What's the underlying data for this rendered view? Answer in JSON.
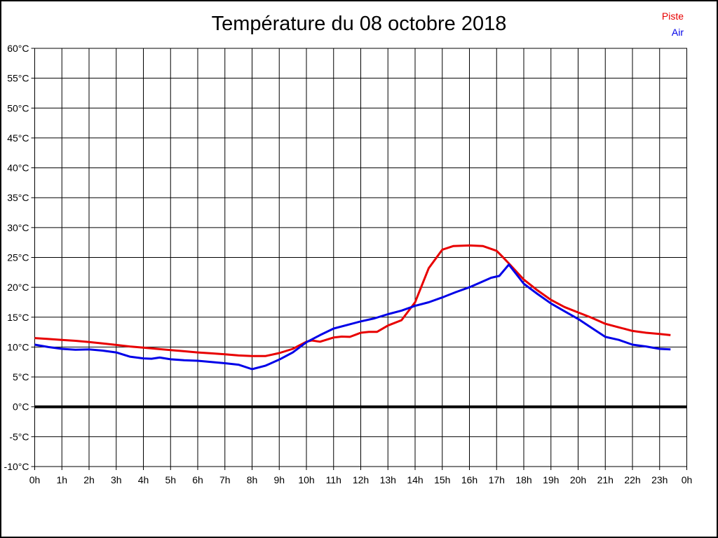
{
  "chart_data": {
    "type": "line",
    "title": "Température du 08 octobre 2018",
    "xlabel": "",
    "ylabel": "",
    "grid": true,
    "legend_position": "top-right",
    "x_axis": {
      "min": 0,
      "max": 24,
      "tick_step_hours": 1,
      "tick_labels": [
        "0h",
        "1h",
        "2h",
        "3h",
        "4h",
        "5h",
        "6h",
        "7h",
        "8h",
        "9h",
        "10h",
        "11h",
        "12h",
        "13h",
        "14h",
        "15h",
        "16h",
        "17h",
        "18h",
        "19h",
        "20h",
        "21h",
        "22h",
        "23h",
        "0h"
      ]
    },
    "y_axis": {
      "min": -10,
      "max": 60,
      "tick_step_degrees": 5,
      "tick_labels": [
        "60°C",
        "55°C",
        "50°C",
        "45°C",
        "40°C",
        "35°C",
        "30°C",
        "25°C",
        "20°C",
        "15°C",
        "10°C",
        "5°C",
        "0°C",
        "-5°C",
        "-10°C"
      ],
      "zero_line_bold": true
    },
    "series": [
      {
        "name": "Piste",
        "color": "#e80000",
        "points": [
          [
            0,
            11.5
          ],
          [
            0.5,
            11.35
          ],
          [
            1,
            11.2
          ],
          [
            1.5,
            11.05
          ],
          [
            2,
            10.85
          ],
          [
            2.5,
            10.6
          ],
          [
            3,
            10.35
          ],
          [
            3.5,
            10.1
          ],
          [
            4,
            9.9
          ],
          [
            4.5,
            9.7
          ],
          [
            5,
            9.5
          ],
          [
            5.5,
            9.3
          ],
          [
            6,
            9.1
          ],
          [
            6.5,
            8.95
          ],
          [
            7,
            8.8
          ],
          [
            7.5,
            8.6
          ],
          [
            8,
            8.5
          ],
          [
            8.5,
            8.5
          ],
          [
            9,
            9.0
          ],
          [
            9.5,
            9.7
          ],
          [
            10,
            10.9
          ],
          [
            10.2,
            11.1
          ],
          [
            10.5,
            10.9
          ],
          [
            11,
            11.6
          ],
          [
            11.3,
            11.75
          ],
          [
            11.6,
            11.7
          ],
          [
            12,
            12.4
          ],
          [
            12.3,
            12.55
          ],
          [
            12.6,
            12.55
          ],
          [
            13,
            13.6
          ],
          [
            13.5,
            14.5
          ],
          [
            14,
            17.5
          ],
          [
            14.5,
            23.2
          ],
          [
            15,
            26.3
          ],
          [
            15.4,
            26.9
          ],
          [
            16,
            27.0
          ],
          [
            16.5,
            26.9
          ],
          [
            17,
            26.1
          ],
          [
            17.2,
            25.2
          ],
          [
            17.45,
            24.0
          ],
          [
            18,
            21.3
          ],
          [
            18.5,
            19.5
          ],
          [
            19,
            17.9
          ],
          [
            19.5,
            16.7
          ],
          [
            20,
            15.8
          ],
          [
            20.5,
            14.9
          ],
          [
            21,
            13.9
          ],
          [
            21.5,
            13.3
          ],
          [
            22,
            12.7
          ],
          [
            22.5,
            12.4
          ],
          [
            23,
            12.2
          ],
          [
            23.4,
            12.0
          ]
        ]
      },
      {
        "name": "Air",
        "color": "#0000e8",
        "points": [
          [
            0,
            10.4
          ],
          [
            0.5,
            10.0
          ],
          [
            1,
            9.7
          ],
          [
            1.5,
            9.55
          ],
          [
            2,
            9.6
          ],
          [
            2.5,
            9.4
          ],
          [
            3,
            9.1
          ],
          [
            3.5,
            8.4
          ],
          [
            4,
            8.1
          ],
          [
            4.3,
            8.05
          ],
          [
            4.6,
            8.25
          ],
          [
            5,
            7.95
          ],
          [
            5.5,
            7.8
          ],
          [
            6,
            7.7
          ],
          [
            6.5,
            7.5
          ],
          [
            7,
            7.3
          ],
          [
            7.5,
            7.05
          ],
          [
            8,
            6.3
          ],
          [
            8.5,
            6.9
          ],
          [
            9,
            7.9
          ],
          [
            9.5,
            9.1
          ],
          [
            10,
            10.8
          ],
          [
            10.5,
            12.0
          ],
          [
            11,
            13.1
          ],
          [
            11.5,
            13.7
          ],
          [
            12,
            14.3
          ],
          [
            12.5,
            14.8
          ],
          [
            13,
            15.5
          ],
          [
            13.5,
            16.1
          ],
          [
            14,
            16.9
          ],
          [
            14.5,
            17.5
          ],
          [
            15,
            18.3
          ],
          [
            15.5,
            19.2
          ],
          [
            16,
            20.0
          ],
          [
            16.5,
            21.0
          ],
          [
            16.8,
            21.6
          ],
          [
            17.1,
            21.9
          ],
          [
            17.45,
            23.8
          ],
          [
            18,
            20.6
          ],
          [
            18.5,
            18.9
          ],
          [
            19,
            17.3
          ],
          [
            19.5,
            16.0
          ],
          [
            20,
            14.7
          ],
          [
            20.5,
            13.2
          ],
          [
            21,
            11.7
          ],
          [
            21.5,
            11.2
          ],
          [
            22,
            10.4
          ],
          [
            22.5,
            10.1
          ],
          [
            23,
            9.7
          ],
          [
            23.4,
            9.6
          ]
        ]
      }
    ]
  }
}
